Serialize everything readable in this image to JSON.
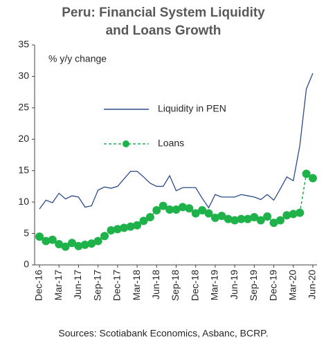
{
  "chart_data": {
    "type": "line",
    "title": "Peru: Financial System Liquidity and Loans Growth",
    "annotation": "% y/y change",
    "source": "Sources: Scotiabank Economics, Asbanc, BCRP.",
    "categories": [
      "Dec-16",
      null,
      null,
      "Mar-17",
      null,
      null,
      "Jun-17",
      null,
      null,
      "Sep-17",
      null,
      null,
      "Dec-17",
      null,
      null,
      "Mar-18",
      null,
      null,
      "Jun-18",
      null,
      null,
      "Sep-18",
      null,
      null,
      "Dec-18",
      null,
      null,
      "Mar-19",
      null,
      null,
      "Jun-19",
      null,
      null,
      "Sep-19",
      null,
      null,
      "Dec-19",
      null,
      null,
      "Mar-20",
      null,
      null,
      "Jun-20"
    ],
    "series": [
      {
        "name": "Liquidity in PEN",
        "color": "#2b4a8b",
        "dashed": false,
        "markers": false,
        "values": [
          8.9,
          10.3,
          9.9,
          11.4,
          10.5,
          11.0,
          10.8,
          9.2,
          9.4,
          11.9,
          12.4,
          12.2,
          12.5,
          13.7,
          14.9,
          14.9,
          14.0,
          13.0,
          12.5,
          12.5,
          14.2,
          11.8,
          12.3,
          12.3,
          12.3,
          10.6,
          9.1,
          11.2,
          10.8,
          10.8,
          10.8,
          11.2,
          11.0,
          10.8,
          10.4,
          11.2,
          10.3,
          12.1,
          14.0,
          13.4,
          19.0,
          28.0,
          30.5
        ]
      },
      {
        "name": "Loans",
        "color": "#1fb24a",
        "dashed": true,
        "markers": true,
        "values": [
          4.5,
          3.8,
          4.0,
          3.3,
          2.9,
          3.5,
          3.0,
          3.2,
          3.4,
          3.8,
          4.6,
          5.5,
          5.7,
          5.9,
          6.1,
          6.3,
          7.0,
          7.6,
          8.7,
          9.4,
          8.8,
          8.8,
          9.2,
          9.0,
          8.2,
          8.7,
          8.2,
          7.5,
          7.8,
          7.3,
          7.1,
          7.3,
          7.3,
          7.6,
          7.1,
          7.7,
          6.7,
          7.1,
          7.9,
          8.1,
          8.3,
          14.5,
          13.8
        ]
      }
    ],
    "ylim": [
      0,
      35
    ],
    "yticks": [
      0,
      5,
      10,
      15,
      20,
      25,
      30,
      35
    ],
    "grid": false
  }
}
